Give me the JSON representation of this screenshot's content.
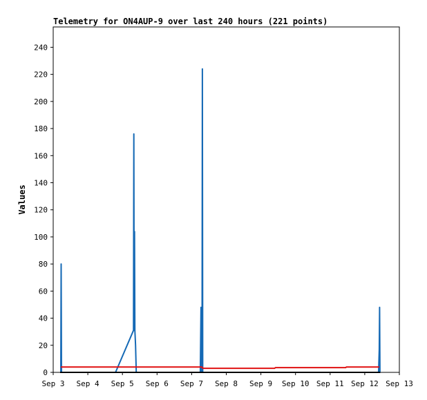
{
  "chart_data": {
    "type": "line",
    "title": "Telemetry for ON4AUP-9 over last 240 hours (221 points)",
    "xlabel": "",
    "ylabel": "Values",
    "x_ticks": [
      "Sep 3",
      "Sep 4",
      "Sep 5",
      "Sep 6",
      "Sep 7",
      "Sep 8",
      "Sep 9",
      "Sep 10",
      "Sep 11",
      "Sep 12",
      "Sep 13"
    ],
    "xlim": [
      3,
      13
    ],
    "ylim": [
      0,
      255
    ],
    "y_ticks": [
      0,
      20,
      40,
      60,
      80,
      100,
      120,
      140,
      160,
      180,
      200,
      220,
      240
    ],
    "grid": false,
    "series": [
      {
        "color": "#1569b5",
        "points": [
          [
            3.2,
            0
          ],
          [
            3.22,
            0
          ],
          [
            3.23,
            80
          ],
          [
            3.24,
            0
          ],
          [
            4.8,
            0
          ],
          [
            5.32,
            31
          ],
          [
            5.33,
            176
          ],
          [
            5.34,
            31
          ],
          [
            5.35,
            104
          ],
          [
            5.36,
            31
          ],
          [
            5.38,
            20
          ],
          [
            5.4,
            0
          ],
          [
            5.42,
            0
          ],
          [
            7.25,
            0
          ],
          [
            7.27,
            48
          ],
          [
            7.28,
            0
          ],
          [
            7.3,
            0
          ],
          [
            7.31,
            224
          ],
          [
            7.32,
            0
          ],
          [
            12.4,
            0
          ],
          [
            12.42,
            17
          ],
          [
            12.43,
            48
          ],
          [
            12.44,
            0
          ]
        ]
      },
      {
        "color": "#e01010",
        "points": [
          [
            3.22,
            4
          ],
          [
            7.3,
            4
          ],
          [
            7.32,
            3
          ],
          [
            9.4,
            3
          ],
          [
            9.42,
            3.5
          ],
          [
            11.45,
            3.5
          ],
          [
            11.47,
            4
          ],
          [
            12.42,
            4
          ]
        ]
      },
      {
        "color": "#000000",
        "points": [
          [
            3.2,
            0
          ],
          [
            12.45,
            0
          ]
        ]
      }
    ]
  }
}
